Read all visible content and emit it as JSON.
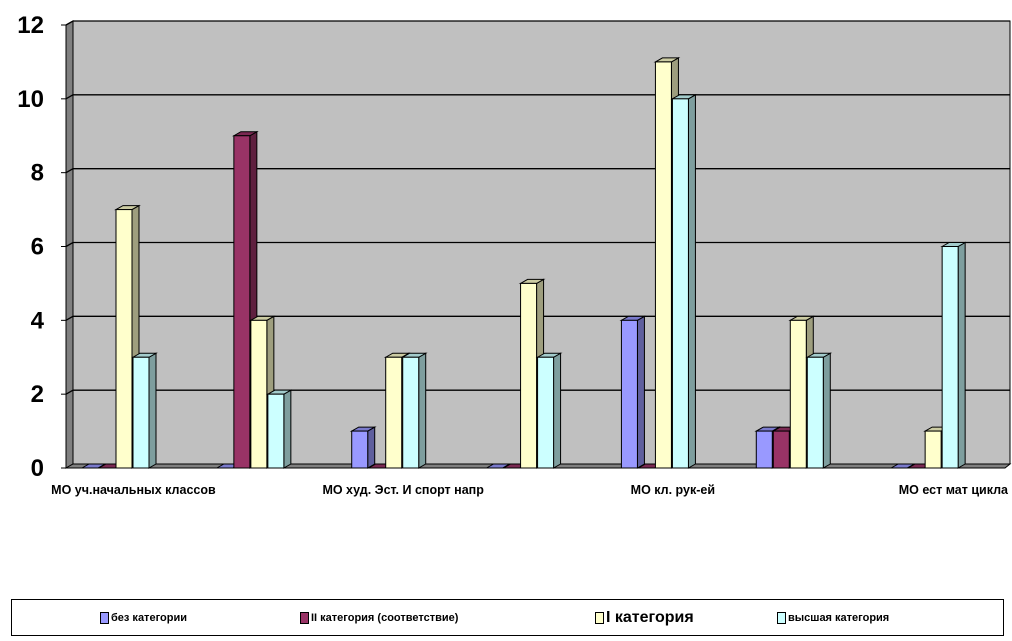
{
  "chart_data": {
    "type": "bar",
    "categories": [
      "МО уч.начальных классов",
      "",
      "МО худ. Эст. И спорт напр",
      "",
      "МО кл. рук-ей",
      "",
      "МО ест мат цикла"
    ],
    "series": [
      {
        "name": "без категории",
        "values": [
          0,
          0,
          1,
          0,
          4,
          1,
          0
        ],
        "color": "#9999ff"
      },
      {
        "name": "II категория (соответствие)",
        "values": [
          0,
          9,
          0,
          0,
          0,
          1,
          0
        ],
        "color": "#993366"
      },
      {
        "name": "I категория",
        "values": [
          7,
          4,
          3,
          5,
          11,
          4,
          1
        ],
        "color": "#ffffcc"
      },
      {
        "name": "высшая категория",
        "values": [
          3,
          2,
          3,
          3,
          10,
          3,
          6
        ],
        "color": "#ccffff"
      }
    ],
    "ylim": [
      0,
      12
    ],
    "yticks": [
      "0",
      "2",
      "4",
      "6",
      "8",
      "10",
      "12"
    ],
    "grid": true,
    "legend_position": "bottom",
    "plot_background": "#c0c0c0"
  }
}
